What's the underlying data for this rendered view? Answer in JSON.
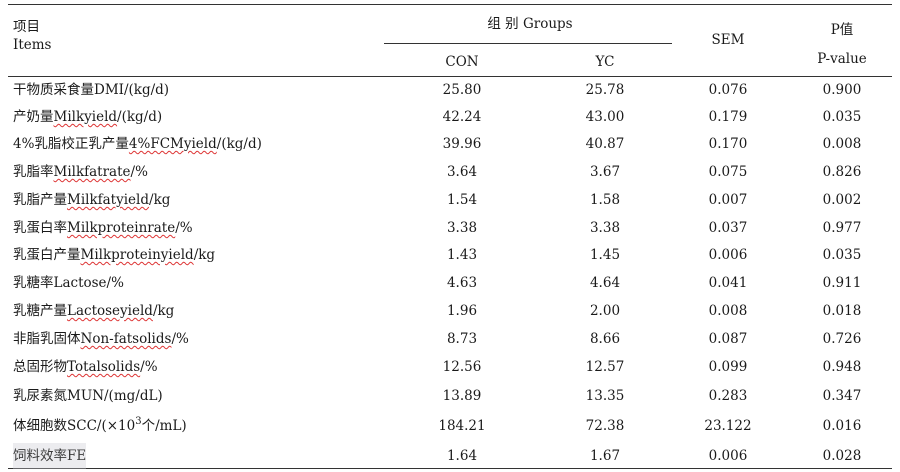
{
  "header": {
    "items_cn": "项目",
    "items_en": "Items",
    "groups": "组 别 Groups",
    "con": "CON",
    "yc": "YC",
    "sem": "SEM",
    "p_cn": "P值",
    "p_en": "P-value"
  },
  "rows": [
    {
      "cn": "干物质采食量",
      "en": "DMI/(kg/d)",
      "con": "25.80",
      "yc": "25.78",
      "sem": "0.076",
      "p": "0.900"
    },
    {
      "cn": "产奶量",
      "en": "Milkyield",
      "unit": "/(kg/d)",
      "con": "42.24",
      "yc": "43.00",
      "sem": "0.179",
      "p": "0.035"
    },
    {
      "cn": "4%乳脂校正乳产量",
      "en": "4%FCMyield",
      "unit": "/(kg/d)",
      "con": "39.96",
      "yc": "40.87",
      "sem": "0.170",
      "p": "0.008"
    },
    {
      "cn": "乳脂率",
      "en": "Milkfatrate",
      "unit": "/%",
      "con": "3.64",
      "yc": "3.67",
      "sem": "0.075",
      "p": "0.826"
    },
    {
      "cn": "乳脂产量",
      "en": "Milkfatyield",
      "unit": "/kg",
      "con": "1.54",
      "yc": "1.58",
      "sem": "0.007",
      "p": "0.002"
    },
    {
      "cn": "乳蛋白率",
      "en": "Milkproteinrate",
      "unit": "/%",
      "con": "3.38",
      "yc": "3.38",
      "sem": "0.037",
      "p": "0.977"
    },
    {
      "cn": "乳蛋白产量",
      "en": "Milkproteinyield",
      "unit": "/kg",
      "con": "1.43",
      "yc": "1.45",
      "sem": "0.006",
      "p": "0.035"
    },
    {
      "cn": "乳糖率",
      "en": "Lactose/%",
      "con": "4.63",
      "yc": "4.64",
      "sem": "0.041",
      "p": "0.911"
    },
    {
      "cn": "乳糖产量",
      "en": "Lactoseyield",
      "unit": "/kg",
      "con": "1.96",
      "yc": "2.00",
      "sem": "0.008",
      "p": "0.018"
    },
    {
      "cn": "非脂乳固体",
      "en": "Non-fatsolids",
      "unit": "/%",
      "con": "8.73",
      "yc": "8.66",
      "sem": "0.087",
      "p": "0.726"
    },
    {
      "cn": "总固形物",
      "en": "Totalsolids",
      "unit": "/%",
      "con": "12.56",
      "yc": "12.57",
      "sem": "0.099",
      "p": "0.948"
    },
    {
      "cn": "乳尿素氮",
      "en": "MUN/(mg/dL)",
      "con": "13.89",
      "yc": "13.35",
      "sem": "0.283",
      "p": "0.347"
    },
    {
      "cn": "体细胞数",
      "en": "SCC/(×10",
      "sup": "3",
      "tail": "个/mL)",
      "con": "184.21",
      "yc": "72.38",
      "sem": "23.122",
      "p": "0.016"
    },
    {
      "cn": "饲料效率",
      "en": "FE",
      "con": "1.64",
      "yc": "1.67",
      "sem": "0.006",
      "p": "0.028"
    }
  ]
}
